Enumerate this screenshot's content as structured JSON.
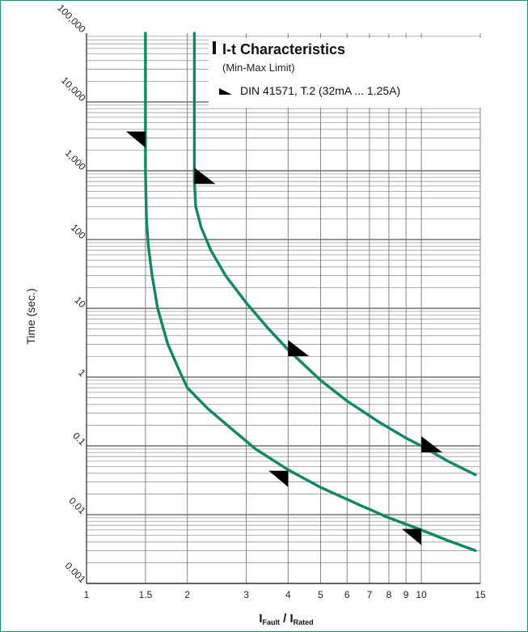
{
  "chart_data": {
    "type": "line",
    "title": "I-t Characteristics",
    "subtitle": "(Min-Max Limit)",
    "legend": [
      {
        "marker": "black-triangle",
        "label": "DIN 41571, T.2 (32mA ... 1.25A)"
      }
    ],
    "xlabel": {
      "main": "I",
      "sub1": "Fault",
      "mid": " / I",
      "sub2": "Rated"
    },
    "ylabel": "Time (sec.)",
    "x_scale": "log",
    "y_scale": "log",
    "xlim": [
      1,
      15
    ],
    "ylim": [
      0.001,
      100000
    ],
    "x_ticks": [
      {
        "value": 1,
        "label": "1"
      },
      {
        "value": 1.5,
        "label": "1.5"
      },
      {
        "value": 2,
        "label": "2"
      },
      {
        "value": 3,
        "label": "3"
      },
      {
        "value": 4,
        "label": "4"
      },
      {
        "value": 5,
        "label": "5"
      },
      {
        "value": 6,
        "label": "6"
      },
      {
        "value": 7,
        "label": "7"
      },
      {
        "value": 8,
        "label": "8"
      },
      {
        "value": 9,
        "label": "9"
      },
      {
        "value": 10,
        "label": "10"
      },
      {
        "value": 15,
        "label": "15"
      }
    ],
    "y_ticks": [
      {
        "value": 0.001,
        "label": "0.001"
      },
      {
        "value": 0.01,
        "label": "0.01"
      },
      {
        "value": 0.1,
        "label": "0.1"
      },
      {
        "value": 1,
        "label": "1"
      },
      {
        "value": 10,
        "label": "10"
      },
      {
        "value": 100,
        "label": "100"
      },
      {
        "value": 1000,
        "label": "1,000"
      },
      {
        "value": 10000,
        "label": "10,000"
      },
      {
        "value": 100000,
        "label": "100,000"
      }
    ],
    "grid": true,
    "series": [
      {
        "color": "#0e8a5c",
        "x": [
          1.5,
          1.5,
          1.5,
          1.51,
          1.53,
          1.57,
          1.63,
          1.75,
          1.9,
          2.0,
          2.3,
          2.7,
          3.2,
          4.0,
          5.0,
          6.5,
          8.0,
          10.0,
          12.0,
          14.5
        ],
        "y": [
          100000,
          10000,
          1000,
          200,
          80,
          30,
          10,
          3,
          1.2,
          0.7,
          0.35,
          0.18,
          0.09,
          0.045,
          0.025,
          0.014,
          0.009,
          0.006,
          0.0042,
          0.003
        ]
      },
      {
        "color": "#0e8a5c",
        "x": [
          2.1,
          2.1,
          2.1,
          2.12,
          2.2,
          2.35,
          2.6,
          3.0,
          3.5,
          4.0,
          5.0,
          6.0,
          7.5,
          9.0,
          10.0,
          12.0,
          14.5
        ],
        "y": [
          100000,
          10000,
          700,
          300,
          150,
          70,
          30,
          12,
          5,
          2.5,
          0.9,
          0.45,
          0.22,
          0.13,
          0.1,
          0.06,
          0.038
        ]
      }
    ],
    "markers": [
      {
        "x": 1.5,
        "y": 3000,
        "shape": "limit-upper-left"
      },
      {
        "x": 2.1,
        "y": 800,
        "shape": "limit-lower-right"
      },
      {
        "x": 4.0,
        "y": 2.5,
        "shape": "limit-lower-right"
      },
      {
        "x": 4.0,
        "y": 0.035,
        "shape": "limit-upper-left"
      },
      {
        "x": 10.0,
        "y": 0.1,
        "shape": "limit-lower-right"
      },
      {
        "x": 10.0,
        "y": 0.005,
        "shape": "limit-upper-left"
      }
    ]
  }
}
